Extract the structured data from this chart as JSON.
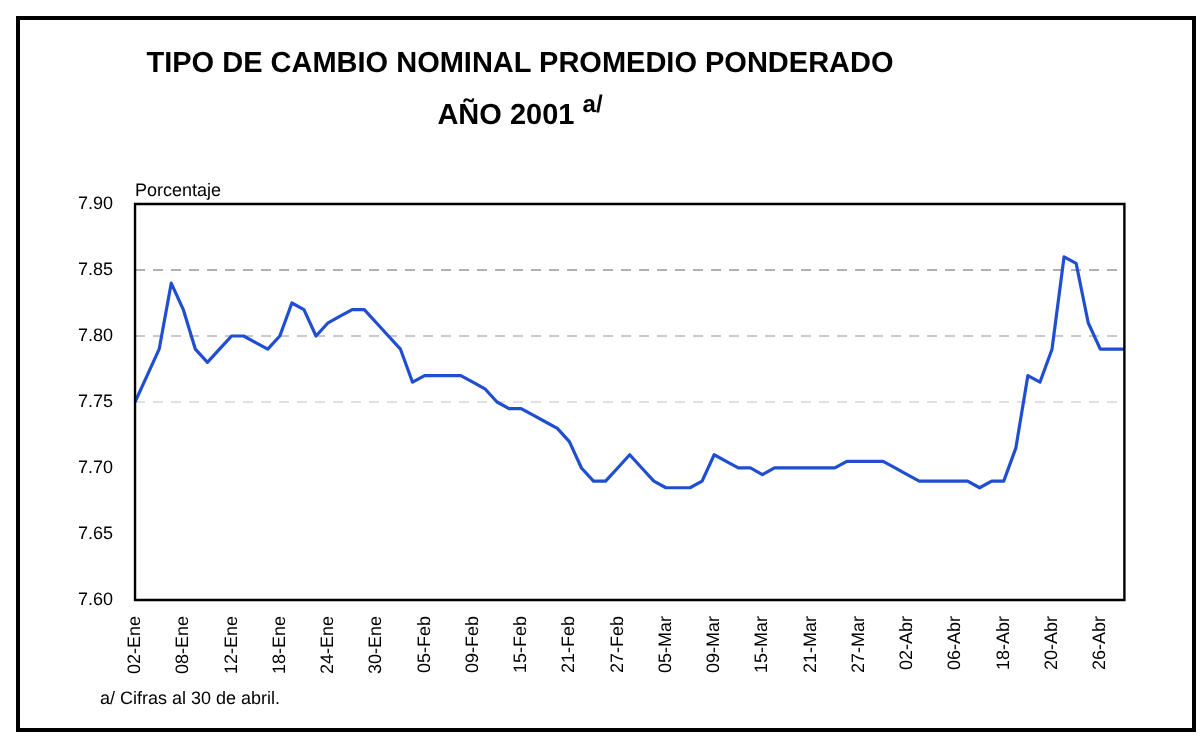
{
  "chart_data": {
    "type": "line",
    "title": "TIPO DE CAMBIO NOMINAL PROMEDIO PONDERADO\nAÑO 2001 $^{a/}$",
    "ylabel": "Porcentaje",
    "categories": [
      "02-Ene",
      null,
      null,
      null,
      "08-Ene",
      null,
      null,
      null,
      "12-Ene",
      null,
      null,
      null,
      "18-Ene",
      null,
      null,
      null,
      "24-Ene",
      null,
      null,
      null,
      "30-Ene",
      null,
      null,
      null,
      "05-Feb",
      null,
      null,
      null,
      "09-Feb",
      null,
      null,
      null,
      "15-Feb",
      null,
      null,
      null,
      "21-Feb",
      null,
      null,
      null,
      "27-Feb",
      null,
      null,
      null,
      "05-Mar",
      null,
      null,
      null,
      "09-Mar",
      null,
      null,
      null,
      "15-Mar",
      null,
      null,
      null,
      "21-Mar",
      null,
      null,
      null,
      "27-Mar",
      null,
      null,
      null,
      "02-Abr",
      null,
      null,
      null,
      "06-Abr",
      null,
      null,
      null,
      "18-Abr",
      null,
      null,
      null,
      "20-Abr",
      null,
      null,
      null,
      "26-Abr",
      null,
      null
    ],
    "series": [
      {
        "color": "#1f4fd0",
        "values": [
          7.75,
          7.77,
          7.79,
          7.84,
          7.82,
          7.79,
          7.78,
          7.79,
          7.8,
          7.8,
          7.795,
          7.79,
          7.8,
          7.825,
          7.82,
          7.8,
          7.81,
          7.815,
          7.82,
          7.82,
          7.81,
          7.8,
          7.79,
          7.765,
          7.77,
          7.77,
          7.77,
          7.77,
          7.765,
          7.76,
          7.75,
          7.745,
          7.745,
          7.74,
          7.735,
          7.73,
          7.72,
          7.7,
          7.69,
          7.69,
          7.7,
          7.71,
          7.7,
          7.69,
          7.685,
          7.685,
          7.685,
          7.69,
          7.71,
          7.705,
          7.7,
          7.7,
          7.695,
          7.7,
          7.7,
          7.7,
          7.7,
          7.7,
          7.7,
          7.705,
          7.705,
          7.705,
          7.705,
          7.7,
          7.695,
          7.69,
          7.69,
          7.69,
          7.69,
          7.69,
          7.685,
          7.69,
          7.69,
          7.715,
          7.77,
          7.765,
          7.79,
          7.86,
          7.855,
          7.81,
          7.79,
          7.79,
          7.79
        ]
      }
    ],
    "ylim": [
      7.6,
      7.9
    ],
    "yticks": [
      {
        "value": 7.9,
        "label": "7.90"
      },
      {
        "value": 7.85,
        "label": "7.85"
      },
      {
        "value": 7.8,
        "label": "7.80"
      },
      {
        "value": 7.75,
        "label": "7.75"
      },
      {
        "value": 7.7,
        "label": "7.70"
      },
      {
        "value": 7.65,
        "label": "7.65"
      },
      {
        "value": 7.6,
        "label": "7.60"
      }
    ],
    "ref_lines": [
      {
        "axis": "y",
        "value": 7.85,
        "color": "#b0b0b0",
        "line_style": "dashed"
      },
      {
        "axis": "y",
        "value": 7.8,
        "color": "#c8c8c8",
        "line_style": "dashed"
      },
      {
        "axis": "y",
        "value": 7.75,
        "color": "#e0e0e0",
        "line_style": "dashed"
      }
    ],
    "annotations": [
      "a/ Cifras al 30 de abril."
    ],
    "marker": "none",
    "line_style": "solid",
    "legend": false,
    "grid": false
  }
}
